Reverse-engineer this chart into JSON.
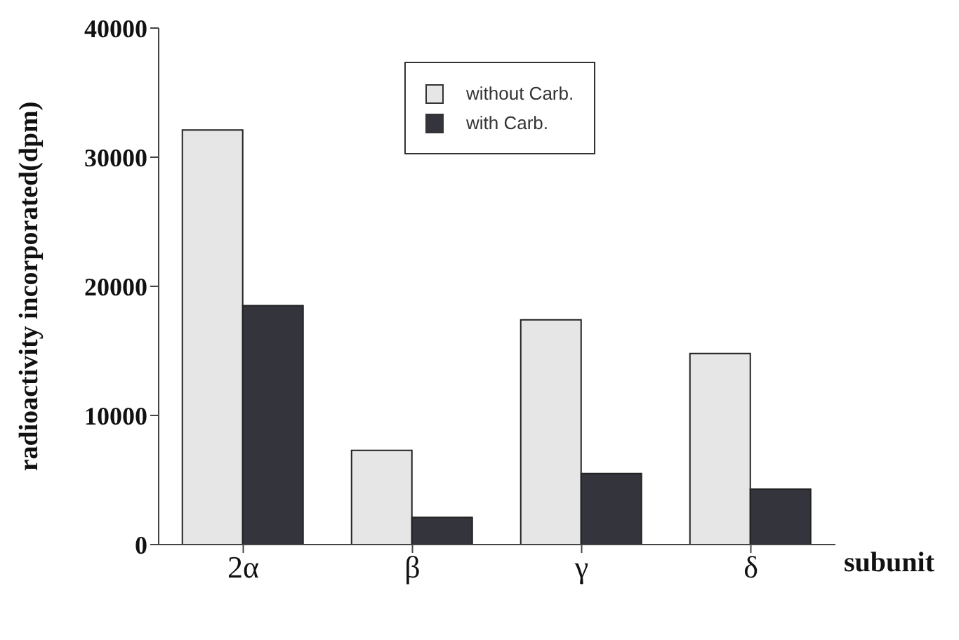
{
  "chart_data": {
    "type": "bar",
    "xlabel": "subunit",
    "ylabel": "radioactivity incorporated(dpm)",
    "categories": [
      "2α",
      "β",
      "γ",
      "δ"
    ],
    "series": [
      {
        "name": "without Carb.",
        "color": "#e6e6e6",
        "values": [
          32100,
          7300,
          17400,
          14800
        ]
      },
      {
        "name": "with Carb.",
        "color": "#34343c",
        "values": [
          18500,
          2100,
          5500,
          4300
        ]
      }
    ],
    "ylim": [
      0,
      40000
    ],
    "yticks": [
      0,
      10000,
      20000,
      30000,
      40000
    ],
    "grid": false,
    "legend": "top right"
  }
}
